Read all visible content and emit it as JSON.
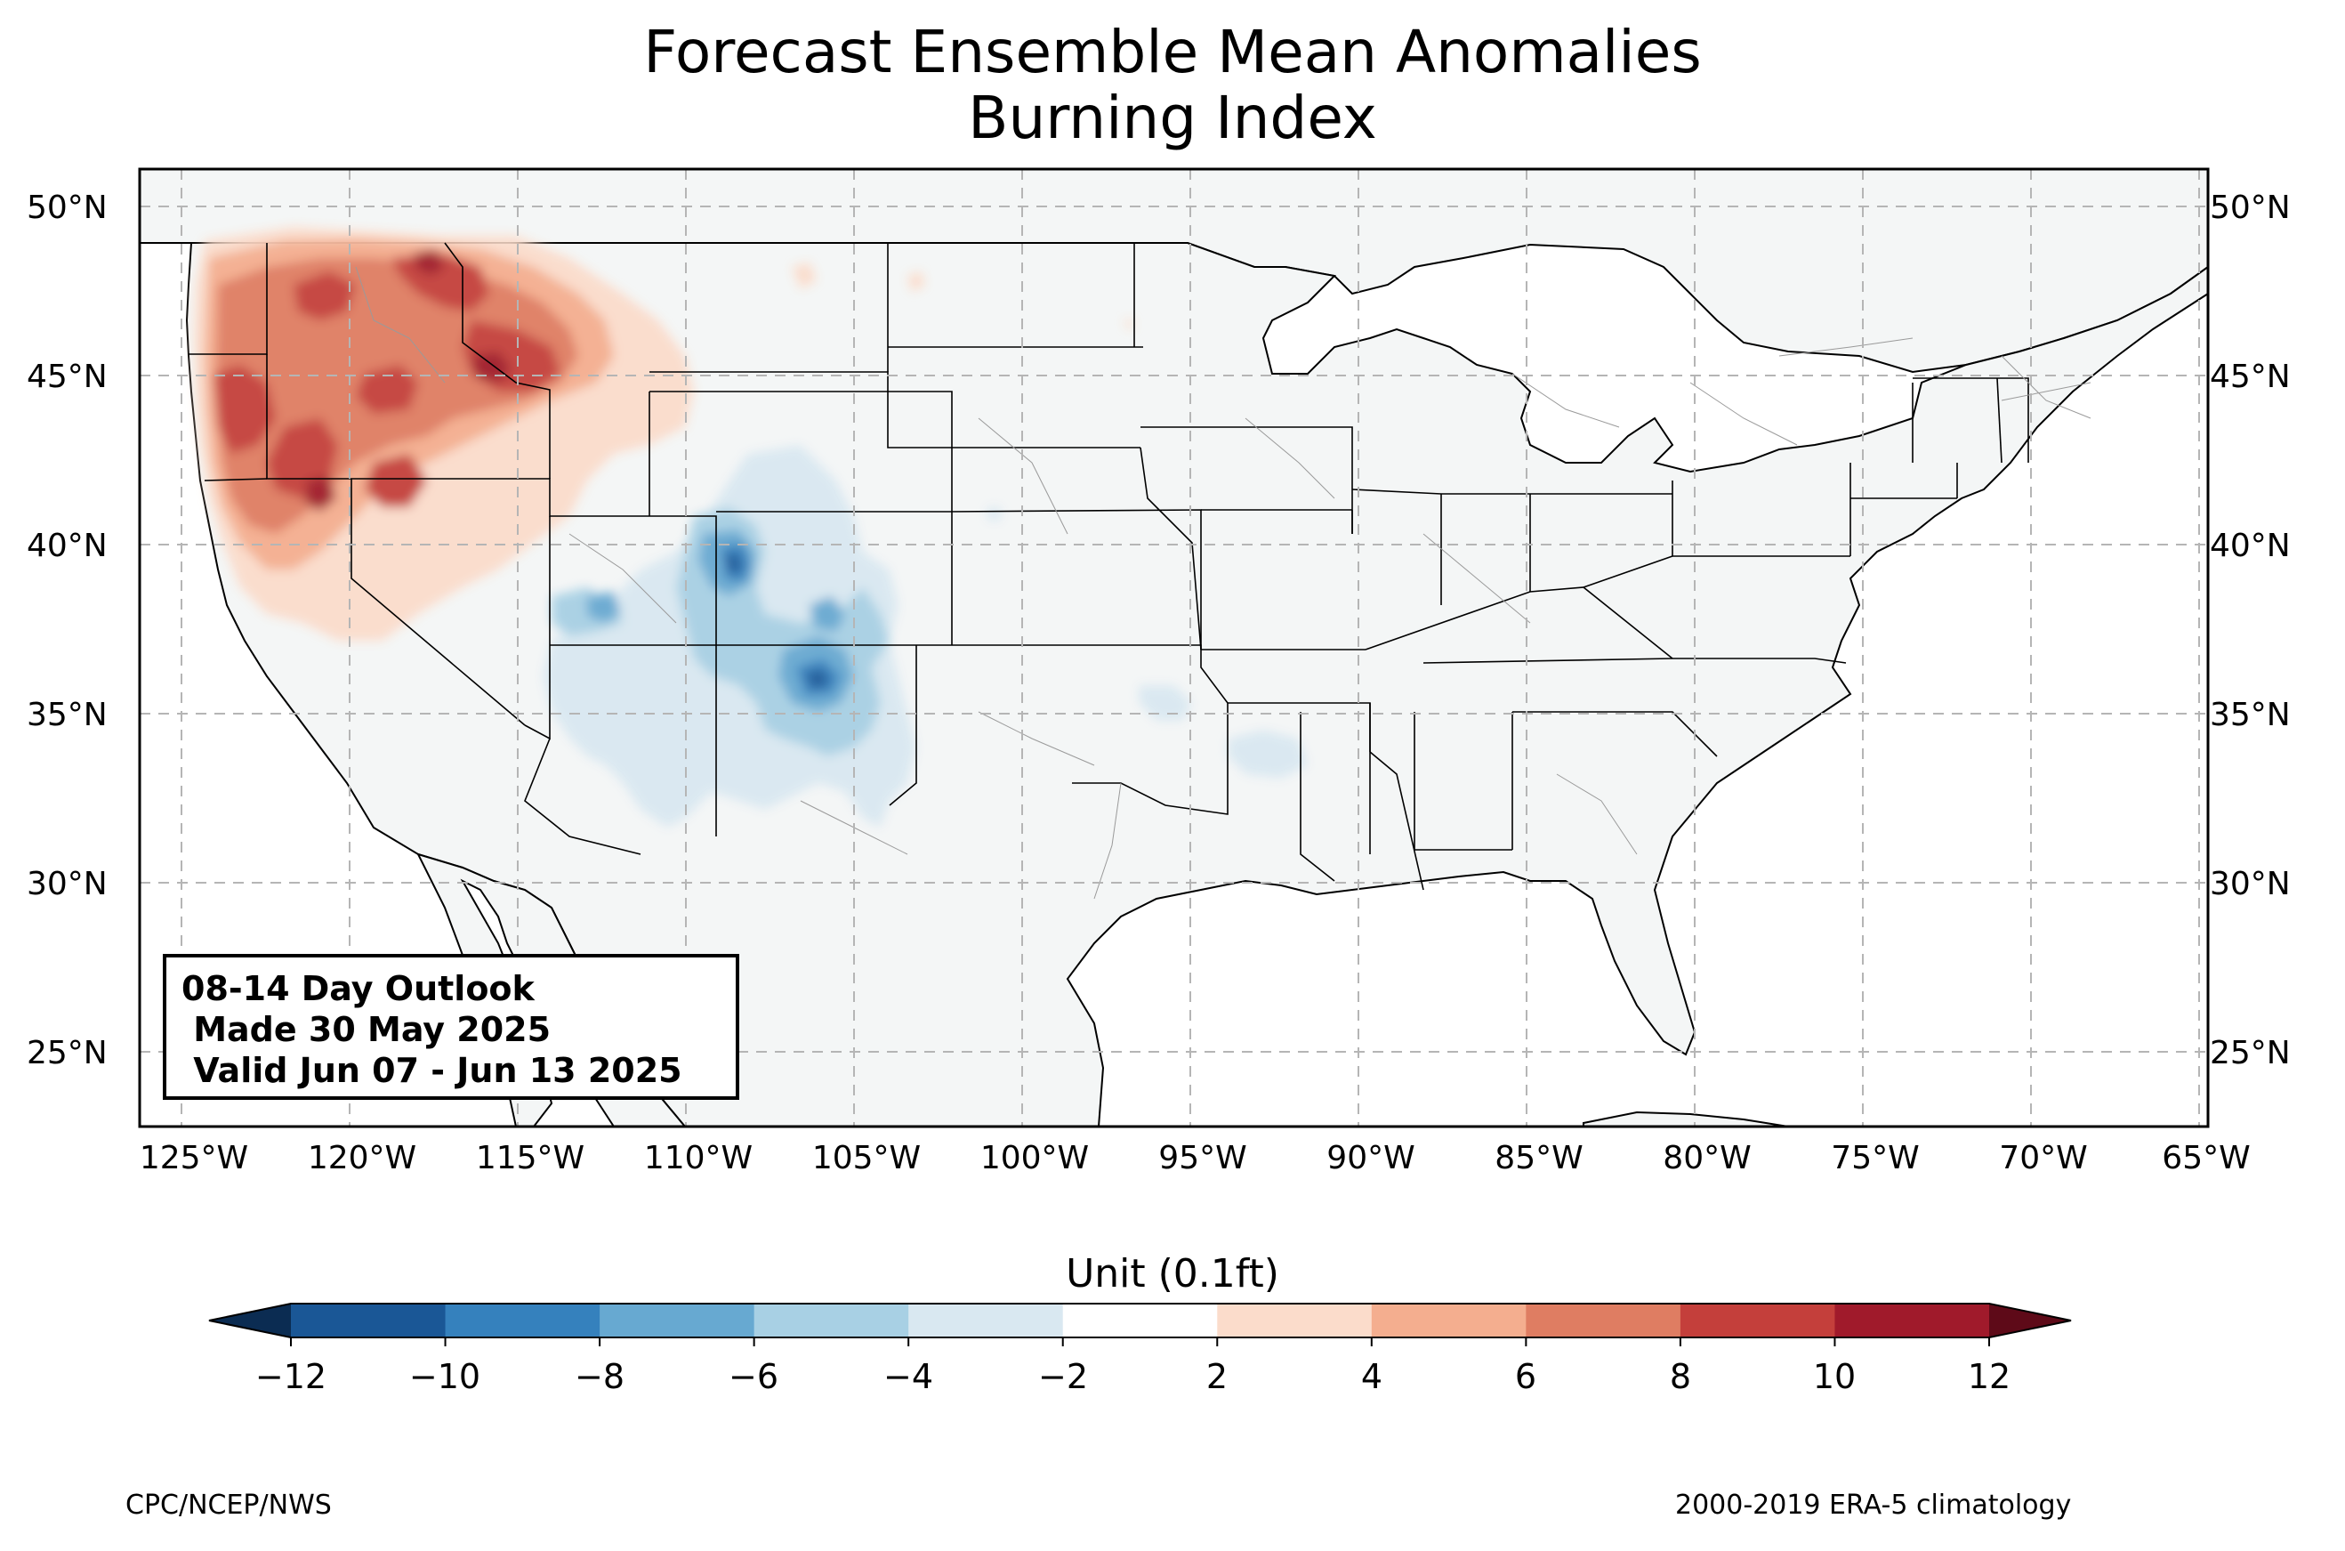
{
  "title_line1": "Forecast Ensemble Mean Anomalies",
  "title_line2": "Burning Index",
  "lat_labels": [
    "50°N",
    "45°N",
    "40°N",
    "35°N",
    "30°N",
    "25°N"
  ],
  "lon_labels": [
    "125°W",
    "120°W",
    "115°W",
    "110°W",
    "105°W",
    "100°W",
    "95°W",
    "90°W",
    "85°W",
    "80°W",
    "75°W",
    "70°W",
    "65°W"
  ],
  "info_box": {
    "line1": "08-14 Day Outlook",
    "line2": " Made 30 May 2025",
    "line3": " Valid Jun 07 - Jun 13 2025"
  },
  "colorbar": {
    "label": "Unit (0.1ft)",
    "ticks": [
      "−12",
      "−10",
      "−8",
      "−6",
      "−4",
      "−2",
      "2",
      "4",
      "6",
      "8",
      "10",
      "12"
    ],
    "colors": [
      "#1a5796",
      "#3581bd",
      "#67a9d1",
      "#a8d0e4",
      "#d9e8f1",
      "#ffffff",
      "#fbdccb",
      "#f4ae8f",
      "#df7d62",
      "#c43f3b",
      "#a01a2b"
    ],
    "under_color": "#0b2c52",
    "over_color": "#5e0a18"
  },
  "footer_left": "CPC/NCEP/NWS",
  "footer_right": "2000-2019 ERA-5 climatology",
  "land_color": "#f4f6f6"
}
